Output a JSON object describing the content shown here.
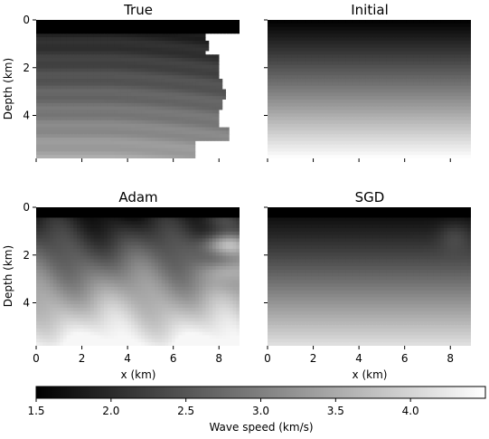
{
  "chart_data": {
    "type": "heatmap",
    "panels": [
      {
        "key": "true",
        "title": "True",
        "model": "true"
      },
      {
        "key": "initial",
        "title": "Initial",
        "model": "initial"
      },
      {
        "key": "adam",
        "title": "Adam",
        "model": "adam"
      },
      {
        "key": "sgd",
        "title": "SGD",
        "model": "sgd"
      }
    ],
    "x": {
      "label": "x (km)",
      "range": [
        0,
        8.9
      ],
      "ticks": [
        0,
        2,
        4,
        6,
        8
      ],
      "tick_labels": [
        "0",
        "2",
        "4",
        "6",
        "8"
      ]
    },
    "y": {
      "label": "Depth (km)",
      "range": [
        0,
        5.8
      ],
      "ticks": [
        0,
        2,
        4
      ],
      "tick_labels": [
        "0",
        "2",
        "4"
      ],
      "inverted": true
    },
    "colorbar": {
      "label": "Wave speed (km/s)",
      "range": [
        1.5,
        4.5
      ],
      "ticks": [
        1.5,
        2.0,
        2.5,
        3.0,
        3.5,
        4.0
      ],
      "tick_labels": [
        "1.5",
        "2.0",
        "2.5",
        "3.0",
        "3.5",
        "4.0"
      ],
      "colormap": "gray",
      "placement": "bottom"
    },
    "grid": false
  }
}
